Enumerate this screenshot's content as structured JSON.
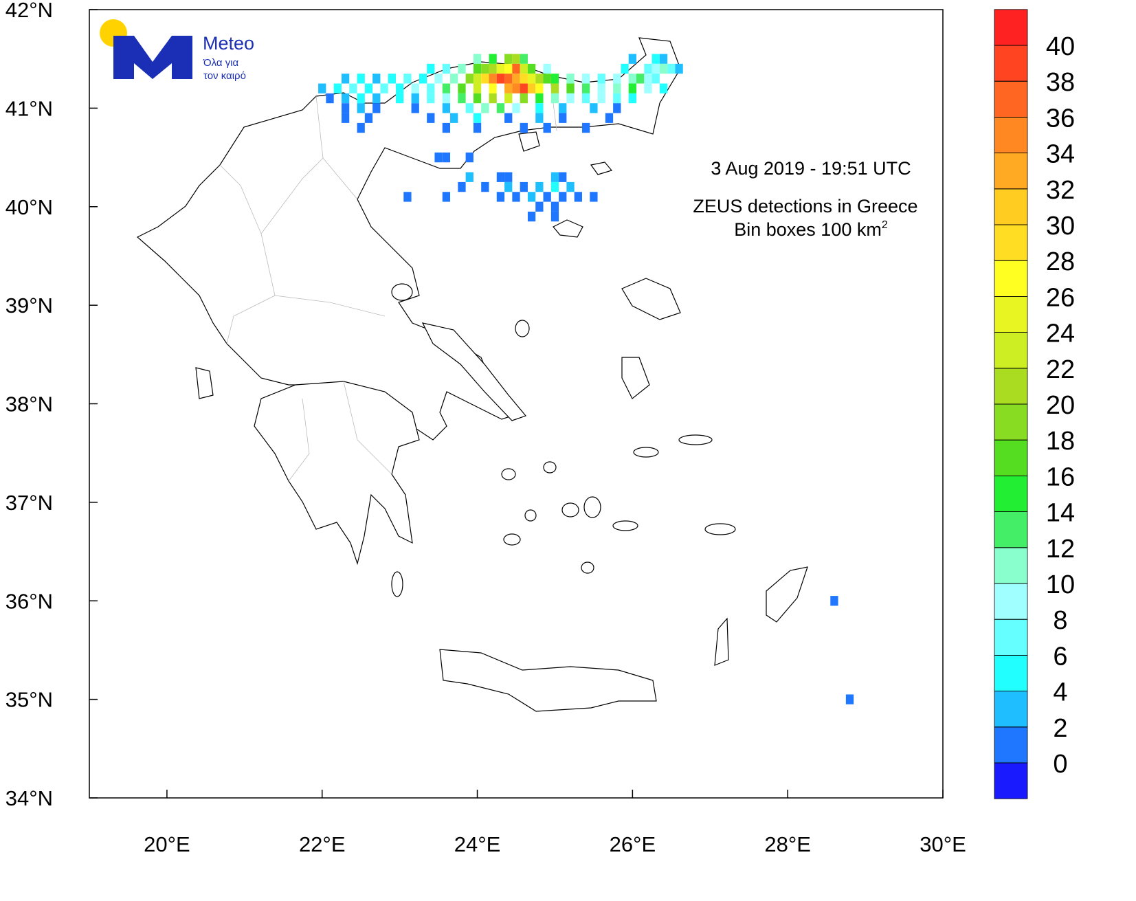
{
  "chart_data": {
    "type": "map",
    "title": "ZEUS detections in Greece",
    "timestamp": "3  Aug 2019 - 19:51 UTC",
    "subtitle": "Bin boxes 100 km",
    "subtitle_sup": "2",
    "logo": {
      "name": "Meteo",
      "slogan_1": "Όλα για",
      "slogan_2": "τον καιρό"
    },
    "xlim": [
      19,
      30
    ],
    "ylim": [
      34,
      42
    ],
    "xticks": [
      {
        "value": 20,
        "label": "20°E"
      },
      {
        "value": 22,
        "label": "22°E"
      },
      {
        "value": 24,
        "label": "24°E"
      },
      {
        "value": 26,
        "label": "26°E"
      },
      {
        "value": 28,
        "label": "28°E"
      },
      {
        "value": 30,
        "label": "30°E"
      }
    ],
    "yticks": [
      {
        "value": 34,
        "label": "34°N"
      },
      {
        "value": 35,
        "label": "35°N"
      },
      {
        "value": 36,
        "label": "36°N"
      },
      {
        "value": 37,
        "label": "37°N"
      },
      {
        "value": 38,
        "label": "38°N"
      },
      {
        "value": 39,
        "label": "39°N"
      },
      {
        "value": 40,
        "label": "40°N"
      },
      {
        "value": 41,
        "label": "41°N"
      },
      {
        "value": 42,
        "label": "42°N"
      }
    ],
    "colorbar": {
      "levels": [
        0,
        2,
        4,
        6,
        8,
        10,
        12,
        14,
        16,
        18,
        20,
        22,
        24,
        26,
        28,
        30,
        32,
        34,
        36,
        38,
        40
      ],
      "colors": [
        "#1a1aff",
        "#1f77ff",
        "#1fbfff",
        "#22ffff",
        "#66ffff",
        "#a0ffff",
        "#88ffcc",
        "#44ee66",
        "#22ee33",
        "#55dd22",
        "#88dd22",
        "#aadd22",
        "#ccee22",
        "#e8f522",
        "#ffff22",
        "#ffdd22",
        "#ffcc22",
        "#ffaa22",
        "#ff8822",
        "#ff6622",
        "#ff4422",
        "#ff2222"
      ]
    },
    "bins": [
      [
        24.0,
        41.5,
        12
      ],
      [
        24.2,
        41.5,
        16
      ],
      [
        24.4,
        41.5,
        20
      ],
      [
        24.5,
        41.5,
        22
      ],
      [
        24.6,
        41.5,
        14
      ],
      [
        26.0,
        41.5,
        4
      ],
      [
        26.3,
        41.5,
        6
      ],
      [
        26.4,
        41.5,
        4
      ],
      [
        23.4,
        41.4,
        6
      ],
      [
        23.6,
        41.4,
        8
      ],
      [
        23.8,
        41.4,
        12
      ],
      [
        24.0,
        41.4,
        18
      ],
      [
        24.1,
        41.4,
        20
      ],
      [
        24.2,
        41.4,
        22
      ],
      [
        24.3,
        41.4,
        26
      ],
      [
        24.4,
        41.4,
        28
      ],
      [
        24.5,
        41.4,
        38
      ],
      [
        24.6,
        41.4,
        24
      ],
      [
        24.7,
        41.4,
        18
      ],
      [
        24.9,
        41.4,
        10
      ],
      [
        25.9,
        41.4,
        6
      ],
      [
        26.2,
        41.4,
        8
      ],
      [
        26.3,
        41.4,
        10
      ],
      [
        26.4,
        41.4,
        12
      ],
      [
        26.5,
        41.4,
        8
      ],
      [
        26.6,
        41.4,
        4
      ],
      [
        22.3,
        41.3,
        4
      ],
      [
        22.5,
        41.3,
        6
      ],
      [
        22.7,
        41.3,
        4
      ],
      [
        22.9,
        41.3,
        6
      ],
      [
        23.1,
        41.3,
        8
      ],
      [
        23.3,
        41.3,
        6
      ],
      [
        23.5,
        41.3,
        10
      ],
      [
        23.7,
        41.3,
        12
      ],
      [
        23.9,
        41.3,
        20
      ],
      [
        24.0,
        41.3,
        24
      ],
      [
        24.1,
        41.3,
        30
      ],
      [
        24.2,
        41.3,
        36
      ],
      [
        24.3,
        41.3,
        40
      ],
      [
        24.4,
        41.3,
        38
      ],
      [
        24.5,
        41.3,
        34
      ],
      [
        24.6,
        41.3,
        30
      ],
      [
        24.7,
        41.3,
        26
      ],
      [
        24.8,
        41.3,
        22
      ],
      [
        24.9,
        41.3,
        18
      ],
      [
        25.0,
        41.3,
        16
      ],
      [
        25.2,
        41.3,
        12
      ],
      [
        25.4,
        41.3,
        10
      ],
      [
        25.6,
        41.3,
        8
      ],
      [
        25.8,
        41.3,
        10
      ],
      [
        26.0,
        41.3,
        12
      ],
      [
        26.1,
        41.3,
        14
      ],
      [
        26.2,
        41.3,
        10
      ],
      [
        26.3,
        41.3,
        8
      ],
      [
        22.0,
        41.2,
        4
      ],
      [
        22.2,
        41.2,
        6
      ],
      [
        22.4,
        41.2,
        8
      ],
      [
        22.6,
        41.2,
        6
      ],
      [
        22.8,
        41.2,
        8
      ],
      [
        23.0,
        41.2,
        6
      ],
      [
        23.2,
        41.2,
        10
      ],
      [
        23.4,
        41.2,
        8
      ],
      [
        23.6,
        41.2,
        14
      ],
      [
        23.8,
        41.2,
        18
      ],
      [
        24.0,
        41.2,
        24
      ],
      [
        24.2,
        41.2,
        28
      ],
      [
        24.4,
        41.2,
        34
      ],
      [
        24.5,
        41.2,
        36
      ],
      [
        24.6,
        41.2,
        40
      ],
      [
        24.7,
        41.2,
        32
      ],
      [
        24.8,
        41.2,
        28
      ],
      [
        25.0,
        41.2,
        22
      ],
      [
        25.2,
        41.2,
        18
      ],
      [
        25.4,
        41.2,
        14
      ],
      [
        25.6,
        41.2,
        10
      ],
      [
        25.8,
        41.2,
        12
      ],
      [
        26.0,
        41.2,
        16
      ],
      [
        26.2,
        41.2,
        10
      ],
      [
        26.4,
        41.2,
        6
      ],
      [
        22.1,
        41.1,
        2
      ],
      [
        22.3,
        41.1,
        4
      ],
      [
        22.5,
        41.1,
        6
      ],
      [
        22.7,
        41.1,
        4
      ],
      [
        23.0,
        41.1,
        6
      ],
      [
        23.2,
        41.1,
        4
      ],
      [
        23.4,
        41.1,
        8
      ],
      [
        23.6,
        41.1,
        10
      ],
      [
        23.8,
        41.1,
        14
      ],
      [
        24.0,
        41.1,
        18
      ],
      [
        24.2,
        41.1,
        22
      ],
      [
        24.4,
        41.1,
        24
      ],
      [
        24.6,
        41.1,
        20
      ],
      [
        24.8,
        41.1,
        16
      ],
      [
        25.0,
        41.1,
        12
      ],
      [
        25.2,
        41.1,
        10
      ],
      [
        25.4,
        41.1,
        8
      ],
      [
        25.6,
        41.1,
        10
      ],
      [
        25.8,
        41.1,
        8
      ],
      [
        26.0,
        41.1,
        6
      ],
      [
        22.3,
        41.0,
        2
      ],
      [
        22.5,
        41.0,
        4
      ],
      [
        22.7,
        41.0,
        2
      ],
      [
        23.2,
        41.0,
        2
      ],
      [
        23.6,
        41.0,
        4
      ],
      [
        23.9,
        41.0,
        8
      ],
      [
        24.1,
        41.0,
        12
      ],
      [
        24.3,
        41.0,
        14
      ],
      [
        24.5,
        41.0,
        10
      ],
      [
        24.8,
        41.0,
        6
      ],
      [
        25.1,
        41.0,
        4
      ],
      [
        25.5,
        41.0,
        4
      ],
      [
        25.8,
        41.0,
        2
      ],
      [
        22.3,
        40.9,
        2
      ],
      [
        22.6,
        40.9,
        2
      ],
      [
        23.4,
        40.9,
        2
      ],
      [
        23.7,
        40.9,
        4
      ],
      [
        24.0,
        40.9,
        6
      ],
      [
        24.4,
        40.9,
        2
      ],
      [
        24.8,
        40.9,
        4
      ],
      [
        25.1,
        40.9,
        2
      ],
      [
        25.7,
        40.9,
        2
      ],
      [
        22.5,
        40.8,
        2
      ],
      [
        23.6,
        40.8,
        2
      ],
      [
        24.0,
        40.8,
        2
      ],
      [
        24.6,
        40.8,
        2
      ],
      [
        24.9,
        40.8,
        2
      ],
      [
        25.4,
        40.8,
        2
      ],
      [
        23.5,
        40.5,
        2
      ],
      [
        23.6,
        40.5,
        2
      ],
      [
        23.9,
        40.5,
        2
      ],
      [
        23.9,
        40.3,
        4
      ],
      [
        24.3,
        40.3,
        2
      ],
      [
        24.4,
        40.3,
        2
      ],
      [
        25.0,
        40.3,
        4
      ],
      [
        25.1,
        40.3,
        2
      ],
      [
        23.8,
        40.2,
        2
      ],
      [
        24.1,
        40.2,
        2
      ],
      [
        24.4,
        40.2,
        4
      ],
      [
        24.6,
        40.2,
        2
      ],
      [
        24.8,
        40.2,
        4
      ],
      [
        25.0,
        40.2,
        6
      ],
      [
        25.2,
        40.2,
        4
      ],
      [
        23.1,
        40.1,
        2
      ],
      [
        23.6,
        40.1,
        2
      ],
      [
        24.3,
        40.1,
        2
      ],
      [
        24.5,
        40.1,
        2
      ],
      [
        24.7,
        40.1,
        4
      ],
      [
        24.9,
        40.1,
        2
      ],
      [
        25.1,
        40.1,
        2
      ],
      [
        25.3,
        40.1,
        2
      ],
      [
        25.5,
        40.1,
        2
      ],
      [
        24.8,
        40.0,
        2
      ],
      [
        25.0,
        40.0,
        2
      ],
      [
        24.7,
        39.9,
        2
      ],
      [
        25.0,
        39.9,
        2
      ],
      [
        28.6,
        36.0,
        2
      ],
      [
        28.8,
        35.0,
        2
      ]
    ]
  }
}
